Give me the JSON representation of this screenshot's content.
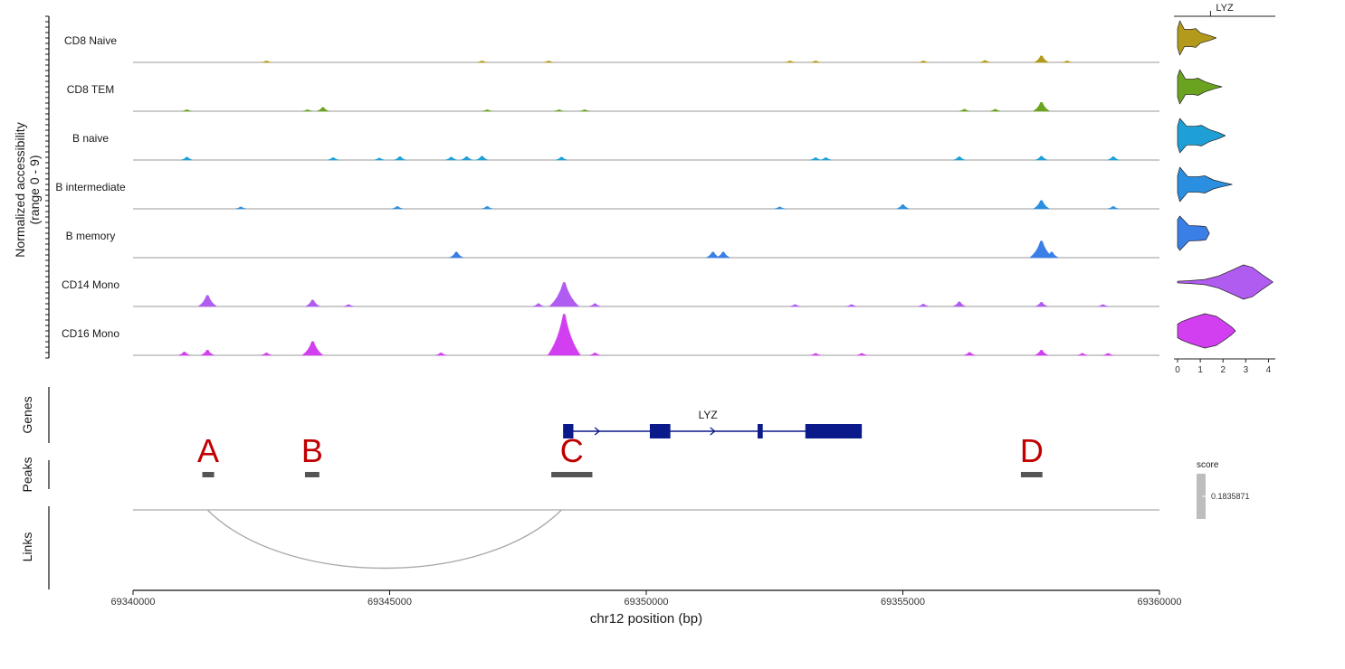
{
  "chart_data": {
    "type": "area",
    "title": "",
    "region": {
      "chrom": "chr12",
      "start": 69340000,
      "end": 69360000
    },
    "xlabel": "chr12 position (bp)",
    "xticks": [
      69340000,
      69345000,
      69350000,
      69355000,
      69360000
    ],
    "coverage": {
      "ylabel_line1": "Normalized accessibility",
      "ylabel_line2": "(range 0 - 9)",
      "ylim": [
        0,
        9
      ],
      "tracks": [
        {
          "name": "CD8 Naive",
          "color": "#b39a1a",
          "peaks": [
            [
              69342600,
              0.3
            ],
            [
              69346800,
              0.3
            ],
            [
              69348100,
              0.3
            ],
            [
              69352800,
              0.3
            ],
            [
              69353300,
              0.3
            ],
            [
              69355400,
              0.3
            ],
            [
              69356600,
              0.4
            ],
            [
              69357700,
              1.4
            ],
            [
              69358200,
              0.3
            ]
          ]
        },
        {
          "name": "CD8 TEM",
          "color": "#6aa31f",
          "peaks": [
            [
              69341050,
              0.3
            ],
            [
              69343400,
              0.3
            ],
            [
              69343700,
              0.8
            ],
            [
              69346900,
              0.3
            ],
            [
              69348300,
              0.3
            ],
            [
              69348800,
              0.3
            ],
            [
              69356200,
              0.4
            ],
            [
              69356800,
              0.4
            ],
            [
              69357700,
              1.9
            ]
          ]
        },
        {
          "name": "B naive",
          "color": "#1e9fd6",
          "peaks": [
            [
              69341050,
              0.6
            ],
            [
              69343900,
              0.5
            ],
            [
              69344800,
              0.4
            ],
            [
              69345200,
              0.7
            ],
            [
              69346200,
              0.6
            ],
            [
              69346500,
              0.7
            ],
            [
              69346800,
              0.8
            ],
            [
              69348350,
              0.6
            ],
            [
              69353300,
              0.5
            ],
            [
              69353500,
              0.5
            ],
            [
              69356100,
              0.7
            ],
            [
              69357700,
              0.8
            ],
            [
              69359100,
              0.7
            ]
          ]
        },
        {
          "name": "B intermediate",
          "color": "#2a8fe0",
          "peaks": [
            [
              69342100,
              0.4
            ],
            [
              69345150,
              0.5
            ],
            [
              69346900,
              0.5
            ],
            [
              69352600,
              0.4
            ],
            [
              69355000,
              0.9
            ],
            [
              69357700,
              1.8
            ],
            [
              69359100,
              0.5
            ]
          ]
        },
        {
          "name": "B memory",
          "color": "#3a7fe6",
          "peaks": [
            [
              69346300,
              1.2
            ],
            [
              69351300,
              1.2
            ],
            [
              69351500,
              1.2
            ],
            [
              69357700,
              3.6
            ],
            [
              69357900,
              1.2
            ]
          ]
        },
        {
          "name": "CD14 Mono",
          "color": "#b05cf0",
          "peaks": [
            [
              69341450,
              2.4
            ],
            [
              69343500,
              1.4
            ],
            [
              69344200,
              0.4
            ],
            [
              69347900,
              0.6
            ],
            [
              69348400,
              5.2
            ],
            [
              69349000,
              0.6
            ],
            [
              69352900,
              0.4
            ],
            [
              69354000,
              0.4
            ],
            [
              69355400,
              0.5
            ],
            [
              69356100,
              1.0
            ],
            [
              69357700,
              0.9
            ],
            [
              69358900,
              0.4
            ]
          ]
        },
        {
          "name": "CD16 Mono",
          "color": "#d23ff0",
          "peaks": [
            [
              69341000,
              0.7
            ],
            [
              69341450,
              1.1
            ],
            [
              69342600,
              0.5
            ],
            [
              69343500,
              3.0
            ],
            [
              69346000,
              0.5
            ],
            [
              69348400,
              8.9
            ],
            [
              69349000,
              0.5
            ],
            [
              69353300,
              0.4
            ],
            [
              69354200,
              0.4
            ],
            [
              69356300,
              0.6
            ],
            [
              69357700,
              1.1
            ],
            [
              69358500,
              0.4
            ],
            [
              69359000,
              0.4
            ]
          ]
        }
      ]
    },
    "expression": {
      "gene": "LYZ",
      "xticks": [
        0,
        1,
        2,
        3,
        4
      ],
      "xlim": [
        0,
        4.3
      ],
      "violins": [
        {
          "name": "CD8 Naive",
          "color": "#b39a1a",
          "max": 1.7,
          "widths": [
            [
              0,
              0.55
            ],
            [
              0.1,
              1.0
            ],
            [
              0.3,
              0.5
            ],
            [
              0.6,
              0.5
            ],
            [
              0.8,
              0.55
            ],
            [
              1.0,
              0.3
            ],
            [
              1.4,
              0.15
            ],
            [
              1.7,
              0.0
            ]
          ]
        },
        {
          "name": "CD8 TEM",
          "color": "#6aa31f",
          "max": 1.95,
          "widths": [
            [
              0,
              0.6
            ],
            [
              0.1,
              1.0
            ],
            [
              0.35,
              0.45
            ],
            [
              0.7,
              0.45
            ],
            [
              0.9,
              0.5
            ],
            [
              1.2,
              0.3
            ],
            [
              1.6,
              0.12
            ],
            [
              1.95,
              0.0
            ]
          ]
        },
        {
          "name": "B naive",
          "color": "#1e9fd6",
          "max": 2.1,
          "widths": [
            [
              0,
              0.55
            ],
            [
              0.1,
              1.0
            ],
            [
              0.4,
              0.55
            ],
            [
              0.8,
              0.55
            ],
            [
              1.05,
              0.6
            ],
            [
              1.4,
              0.35
            ],
            [
              1.8,
              0.18
            ],
            [
              2.1,
              0.0
            ]
          ]
        },
        {
          "name": "B intermediate",
          "color": "#2a8fe0",
          "max": 2.4,
          "widths": [
            [
              0,
              0.5
            ],
            [
              0.1,
              1.0
            ],
            [
              0.45,
              0.45
            ],
            [
              0.9,
              0.45
            ],
            [
              1.2,
              0.5
            ],
            [
              1.6,
              0.25
            ],
            [
              2.0,
              0.12
            ],
            [
              2.4,
              0.0
            ]
          ]
        },
        {
          "name": "B memory",
          "color": "#3a7fe6",
          "max": 1.4,
          "widths": [
            [
              0,
              0.8
            ],
            [
              0.1,
              1.0
            ],
            [
              0.5,
              0.45
            ],
            [
              1.0,
              0.42
            ],
            [
              1.25,
              0.38
            ],
            [
              1.4,
              0.0
            ]
          ]
        },
        {
          "name": "CD14 Mono",
          "color": "#b05cf0",
          "max": 4.2,
          "widths": [
            [
              0,
              0.05
            ],
            [
              0.5,
              0.08
            ],
            [
              1.2,
              0.15
            ],
            [
              1.8,
              0.35
            ],
            [
              2.4,
              0.7
            ],
            [
              2.9,
              1.0
            ],
            [
              3.3,
              0.85
            ],
            [
              3.7,
              0.45
            ],
            [
              4.0,
              0.18
            ],
            [
              4.2,
              0.0
            ]
          ]
        },
        {
          "name": "CD16 Mono",
          "color": "#d23ff0",
          "max": 2.55,
          "widths": [
            [
              0,
              0.4
            ],
            [
              0.2,
              0.55
            ],
            [
              0.6,
              0.75
            ],
            [
              1.2,
              1.0
            ],
            [
              1.7,
              0.85
            ],
            [
              2.1,
              0.5
            ],
            [
              2.4,
              0.2
            ],
            [
              2.55,
              0.0
            ]
          ]
        }
      ]
    },
    "genes": {
      "label": "Genes",
      "gene_name": "LYZ",
      "gene_start": 69348380,
      "gene_end": 69354200,
      "exons": [
        [
          69348380,
          69348580
        ],
        [
          69350070,
          69350470
        ],
        [
          69352170,
          69352270
        ],
        [
          69353100,
          69354200
        ]
      ],
      "strand_arrows": [
        69349050,
        69351300
      ],
      "color": "#0b1a8a"
    },
    "peaks": {
      "label": "Peaks",
      "items": [
        {
          "name": "A",
          "start": 69341350,
          "end": 69341580
        },
        {
          "name": "B",
          "start": 69343350,
          "end": 69343630
        },
        {
          "name": "C",
          "start": 69348150,
          "end": 69348950
        },
        {
          "name": "D",
          "start": 69357300,
          "end": 69357720
        }
      ],
      "color": "#555555",
      "letter_color": "#c00000"
    },
    "links": {
      "label": "Links",
      "items": [
        {
          "start": 69341450,
          "end": 69348350,
          "score": 0.1835871
        }
      ],
      "color": "#aaaaaa"
    },
    "score_legend": {
      "title": "score",
      "value": "0.1835871",
      "color": "#bdbdbd"
    }
  }
}
